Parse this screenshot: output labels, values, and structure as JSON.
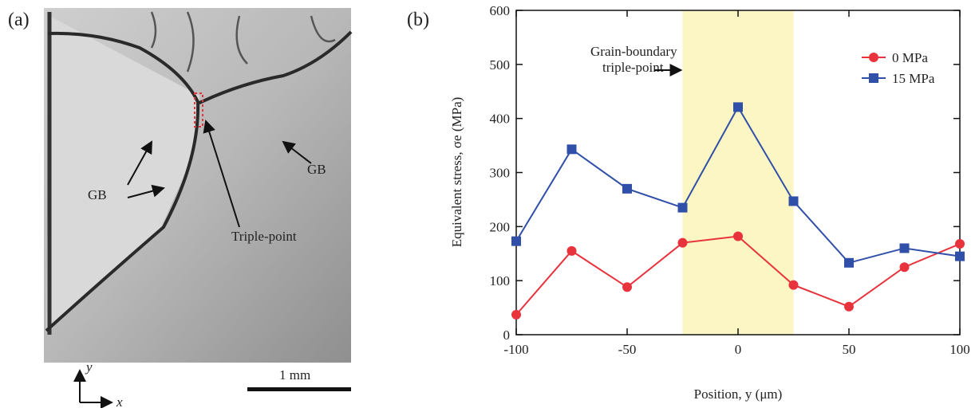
{
  "panel_a": {
    "label": "(a)",
    "annotations": [
      "GB",
      "GB",
      "Triple-point"
    ],
    "scale_bar": "1 mm",
    "axis_y": "y",
    "axis_x": "x"
  },
  "chart_data": {
    "type": "line",
    "panel_label": "(b)",
    "x_label": "Position, y (μm)",
    "y_label": "Equivalent stress, σe (MPa)",
    "x": [
      -100,
      -75,
      -50,
      -25,
      0,
      25,
      50,
      75,
      100
    ],
    "series": [
      {
        "name": "0 MPa",
        "color": "#e8323c",
        "marker": "circle",
        "values": [
          37,
          155,
          88,
          170,
          182,
          92,
          52,
          125,
          168
        ]
      },
      {
        "name": "15 MPa",
        "color": "#2f4fa8",
        "marker": "square",
        "values": [
          173,
          343,
          270,
          235,
          421,
          247,
          133,
          160,
          145
        ]
      }
    ],
    "xlim": [
      -100,
      100
    ],
    "xticks": [
      -100,
      -50,
      0,
      50,
      100
    ],
    "ylim": [
      0,
      600
    ],
    "yticks": [
      0,
      100,
      200,
      300,
      400,
      500,
      600
    ],
    "shaded_x": [
      -25,
      25
    ],
    "shade_color": "#fbf6c3",
    "annotation": [
      "Grain-boundary",
      "triple-point"
    ],
    "legend": "upper right"
  }
}
